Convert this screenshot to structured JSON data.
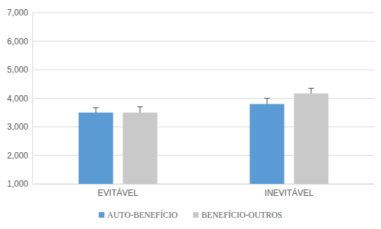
{
  "chart_data": {
    "type": "bar",
    "categories": [
      "EVITÁVEL",
      "INEVITÁVEL"
    ],
    "series": [
      {
        "name": "AUTO-BENEFÍCIO",
        "color": "#5b9bd5",
        "values": [
          3500,
          3800
        ],
        "errors": [
          170,
          200
        ]
      },
      {
        "name": "BENEFÍCIO-OUTROS",
        "color": "#c9c9c9",
        "values": [
          3500,
          4170
        ],
        "errors": [
          200,
          180
        ]
      }
    ],
    "ylim": [
      1000,
      7000
    ],
    "yticks": [
      {
        "value": 1000,
        "label": "1,000"
      },
      {
        "value": 2000,
        "label": "2,000"
      },
      {
        "value": 3000,
        "label": "3,000"
      },
      {
        "value": 4000,
        "label": "4,000"
      },
      {
        "value": 5000,
        "label": "5,000"
      },
      {
        "value": 6000,
        "label": "6,000"
      },
      {
        "value": 7000,
        "label": "7,000"
      }
    ],
    "grid": true,
    "legend": "bottom"
  }
}
